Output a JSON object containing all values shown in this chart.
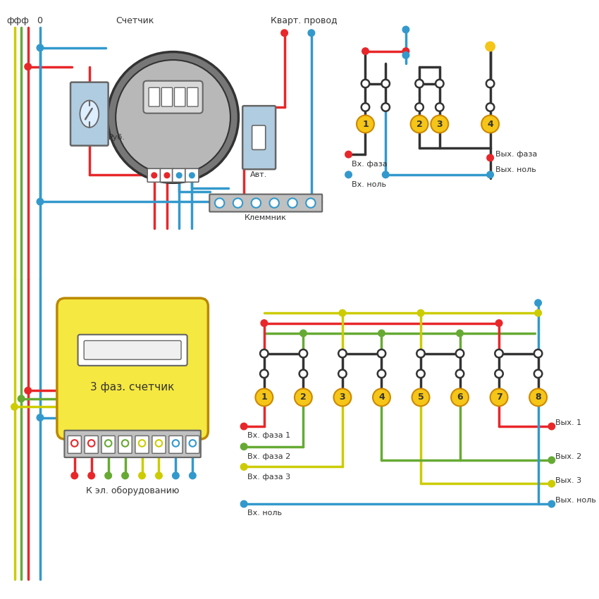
{
  "bg_color": "#ffffff",
  "colors": {
    "red": "#e8272a",
    "blue": "#3399cc",
    "green": "#66aa33",
    "yellow_wire": "#cccc00",
    "yellow_circle": "#f5c518",
    "black": "#333333",
    "dark_gray": "#666666",
    "meter_gray": "#b8b8b8",
    "meter_ring": "#777777",
    "yellow_meter": "#f5e840",
    "light_blue_box": "#b0cce0",
    "white": "#ffffff",
    "term_gray": "#c0c0c0"
  },
  "labels": {
    "fff": "ффф",
    "zero": "0",
    "schetcik": "Счетчик",
    "kvart": "Кварт. провод",
    "rub": "Руб.",
    "avt": "Авт.",
    "klemm": "Клеммник",
    "three_phase": "3 фаз. счетчик",
    "k_el": "К эл. оборудованию",
    "vx_faza": "Вх. фаза",
    "vx_nol": "Вх. ноль",
    "vyh_faza": "Вых. фаза",
    "vyh_nol": "Вых. ноль",
    "vx_faza1": "Вх. фаза 1",
    "vx_faza2": "Вх. фаза 2",
    "vx_faza3": "Вх. фаза 3",
    "vx_nol2": "Вх. ноль",
    "vyh1": "Вых. 1",
    "vyh2": "Вых. 2",
    "vyh3": "Вых. 3",
    "vyh_nol2": "Вых. ноль"
  }
}
